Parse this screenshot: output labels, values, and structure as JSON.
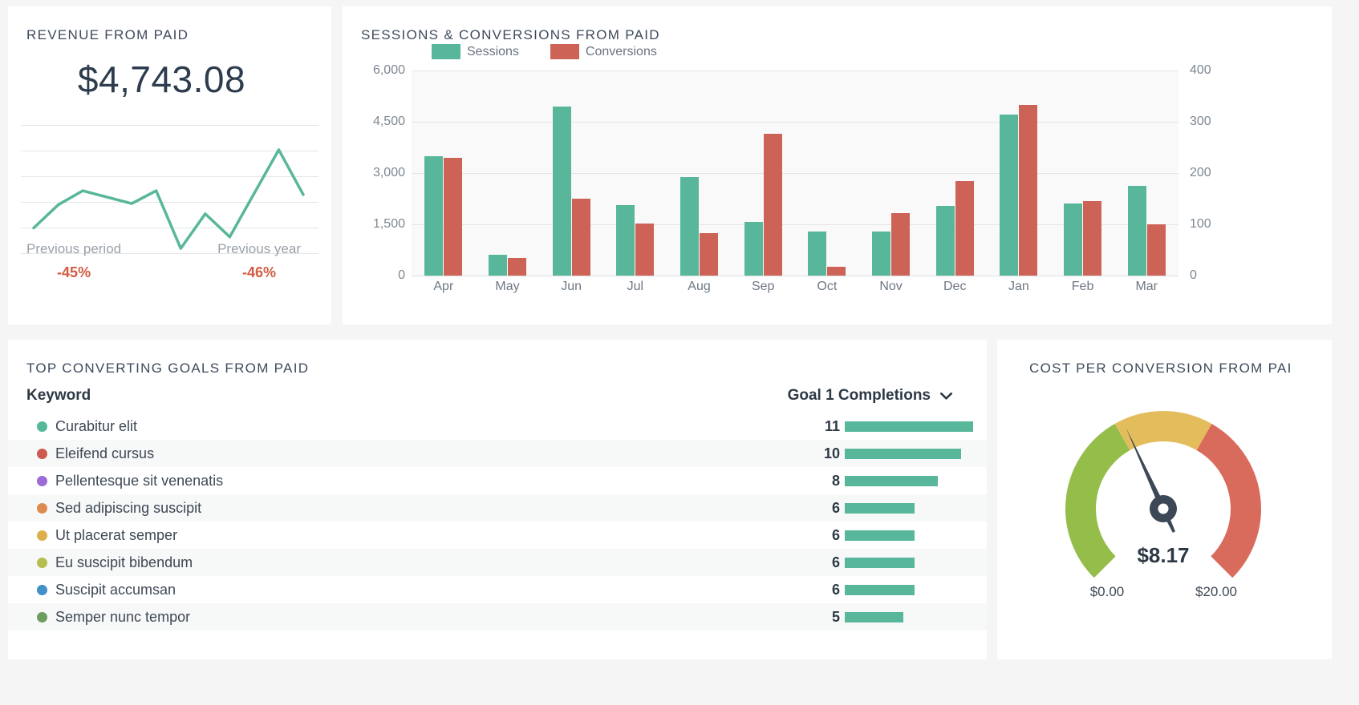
{
  "theme": {
    "page_bg": "#f5f5f6",
    "card_bg": "#ffffff",
    "title_color": "#3e4a5c",
    "teal": "#58b79b",
    "salmon": "#cd6356",
    "negative_red": "#d25b42",
    "muted_text": "#99a1aa",
    "axis_text": "#7d8791",
    "dark_text": "#2e3946",
    "gridline": "#e4e5e6",
    "plot_bg": "#f9f9fa",
    "row_alt_bg": "#f7f8f8",
    "needle_color": "#3d4856"
  },
  "revenue_card": {
    "title": "REVENUE FROM PAID",
    "value": "$4,743.08",
    "comparisons": [
      {
        "label": "Previous period",
        "value": "-45%"
      },
      {
        "label": "Previous year",
        "value": "-46%"
      }
    ]
  },
  "sessions_card": {
    "title": "SESSIONS & CONVERSIONS FROM PAID"
  },
  "goals_card": {
    "title": "TOP CONVERTING GOALS FROM PAID",
    "keyword_header": "Keyword",
    "metric_header": "Goal 1 Completions",
    "chevron_icon": "chevron-down"
  },
  "gauge_card": {
    "title": "COST PER CONVERSION FROM PAI"
  },
  "chart_data": [
    {
      "id": "revenue_sparkline",
      "type": "line",
      "title": "REVENUE FROM PAID",
      "color": "#58b79b",
      "values": [
        20,
        38,
        49,
        44,
        39,
        49,
        4,
        31,
        13,
        47,
        81,
        46
      ],
      "ylim": [
        0,
        100
      ],
      "unit": "relative (no axis labels shown)",
      "grid": true,
      "gridline_count": 6
    },
    {
      "id": "sessions_conversions",
      "type": "bar",
      "title": "SESSIONS & CONVERSIONS FROM PAID",
      "categories": [
        "Apr",
        "May",
        "Jun",
        "Jul",
        "Aug",
        "Sep",
        "Oct",
        "Nov",
        "Dec",
        "Jan",
        "Feb",
        "Mar"
      ],
      "series": [
        {
          "name": "Sessions",
          "axis": "left",
          "color": "#58b79b",
          "values": [
            3500,
            600,
            4950,
            2070,
            2880,
            1560,
            1280,
            1290,
            2040,
            4700,
            2100,
            2620
          ]
        },
        {
          "name": "Conversions",
          "axis": "right",
          "color": "#cd6356",
          "values": [
            230,
            35,
            150,
            102,
            83,
            277,
            17,
            122,
            185,
            333,
            145,
            100
          ]
        }
      ],
      "left_axis": {
        "min": 0,
        "max": 6000,
        "tick_labels": [
          "0",
          "1,500",
          "3,000",
          "4,500",
          "6,000"
        ]
      },
      "right_axis": {
        "min": 0,
        "max": 400,
        "tick_labels": [
          "0",
          "100",
          "200",
          "300",
          "400"
        ]
      },
      "legend_position": "top",
      "grid": true
    },
    {
      "id": "top_goals",
      "type": "bar",
      "orientation": "horizontal",
      "title": "TOP CONVERTING GOALS FROM PAID",
      "metric": "Goal 1 Completions",
      "bar_color": "#58b79b",
      "rows": [
        {
          "keyword": "Curabitur elit",
          "value": 11,
          "dot_color": "#56b79a"
        },
        {
          "keyword": "Eleifend cursus",
          "value": 10,
          "dot_color": "#cd5a4e"
        },
        {
          "keyword": "Pellentesque sit venenatis",
          "value": 8,
          "dot_color": "#9c6bd8"
        },
        {
          "keyword": "Sed adipiscing suscipit",
          "value": 6,
          "dot_color": "#dd8a50"
        },
        {
          "keyword": "Ut placerat semper",
          "value": 6,
          "dot_color": "#ddae4c"
        },
        {
          "keyword": "Eu suscipit bibendum",
          "value": 6,
          "dot_color": "#b5bd4e"
        },
        {
          "keyword": "Suscipit accumsan",
          "value": 6,
          "dot_color": "#4190c8"
        },
        {
          "keyword": "Semper nunc tempor",
          "value": 5,
          "dot_color": "#6b9e60"
        }
      ]
    },
    {
      "id": "cost_per_conversion",
      "type": "gauge",
      "title": "COST PER CONVERSION FROM PAI",
      "value": 8.17,
      "value_label": "$8.17",
      "min": 0,
      "max": 20,
      "min_label": "$0.00",
      "max_label": "$20.00",
      "sweep_deg": 270,
      "segments": [
        {
          "from": 0,
          "to": 7.8,
          "color": "#94bd49"
        },
        {
          "from": 7.8,
          "to": 12.2,
          "color": "#e3bd5c"
        },
        {
          "from": 12.2,
          "to": 20,
          "color": "#d96b5c"
        }
      ]
    }
  ]
}
